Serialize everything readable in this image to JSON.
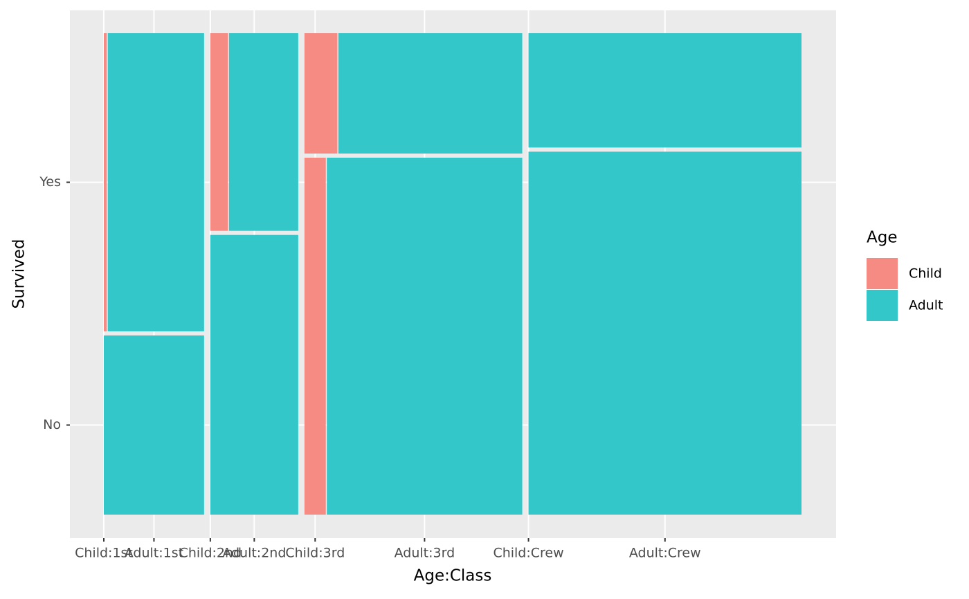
{
  "chart_data": {
    "type": "mosaic",
    "x_label": "Age:Class",
    "y_label": "Survived",
    "legend_title": "Age",
    "yticks": [
      "No",
      "Yes"
    ],
    "xticks": [
      "Child:1st",
      "Adult:1st",
      "Child:2nd",
      "Adult:2nd",
      "Child:3rd",
      "Adult:3rd",
      "Child:Crew",
      "Adult:Crew"
    ],
    "series": [
      {
        "name": "Child",
        "color": "#f68b83",
        "values": [
          [
            0,
            6
          ],
          [
            0,
            24
          ],
          [
            52,
            27
          ],
          [
            0,
            0
          ]
        ]
      },
      {
        "name": "Adult",
        "color": "#33c7ca",
        "values": [
          [
            122,
            197
          ],
          [
            167,
            94
          ],
          [
            476,
            151
          ],
          [
            673,
            212
          ]
        ]
      }
    ],
    "grid": true
  }
}
